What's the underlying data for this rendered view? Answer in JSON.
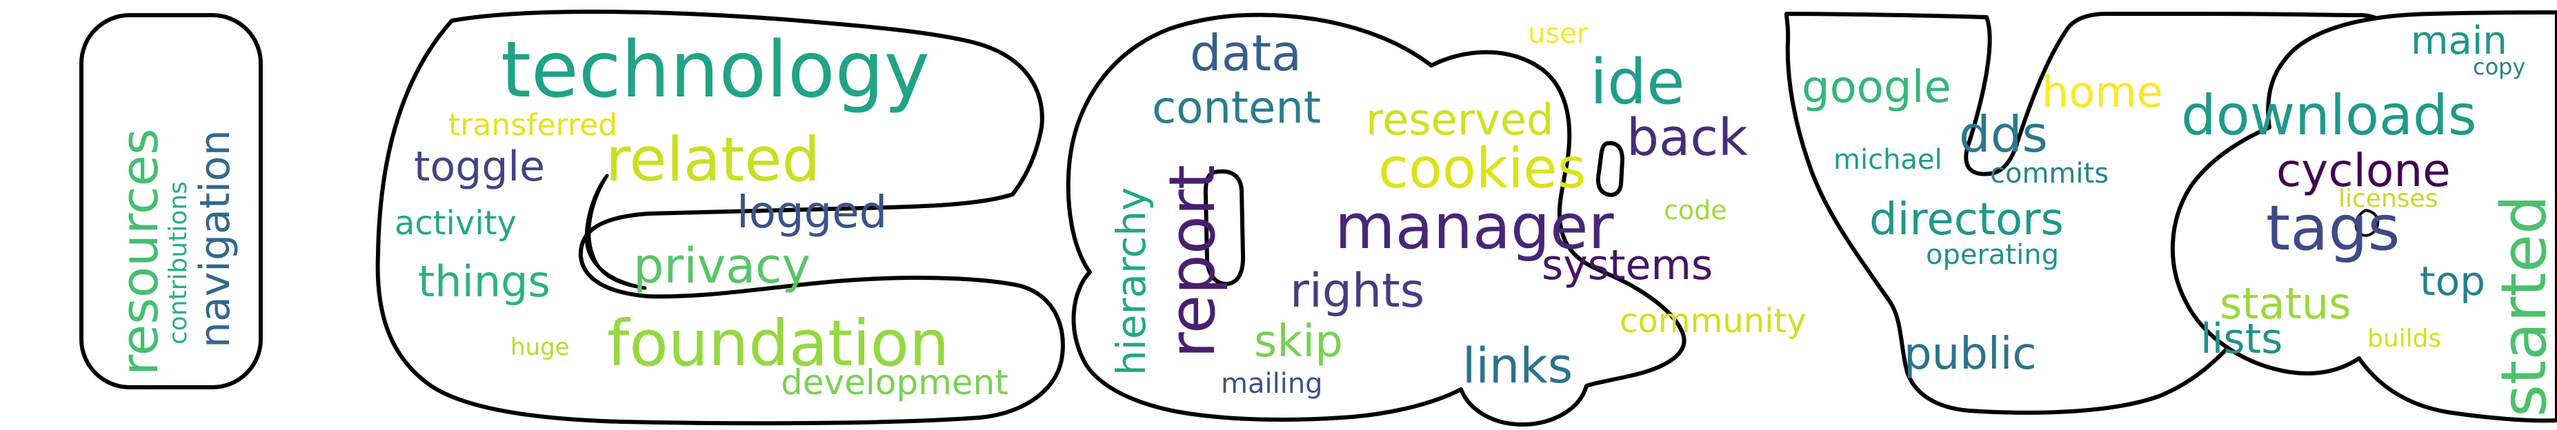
{
  "image": {
    "kind": "word-cloud"
  },
  "shape": {
    "outline_color": "#000000",
    "fill_color": "#ffffff"
  },
  "words": [
    {
      "text": "technology",
      "color": "#20a386"
    },
    {
      "text": "foundation",
      "color": "#95d840"
    },
    {
      "text": "related",
      "color": "#c8e020"
    },
    {
      "text": "privacy",
      "color": "#56c667"
    },
    {
      "text": "logged",
      "color": "#3b528b"
    },
    {
      "text": "toggle",
      "color": "#414487"
    },
    {
      "text": "things",
      "color": "#2db27d"
    },
    {
      "text": "activity",
      "color": "#22a884"
    },
    {
      "text": "transferred",
      "color": "#e5e419"
    },
    {
      "text": "huge",
      "color": "#b5de2b"
    },
    {
      "text": "development",
      "color": "#7ad151"
    },
    {
      "text": "resources",
      "color": "#44bf70"
    },
    {
      "text": "contributions",
      "color": "#29af7f"
    },
    {
      "text": "navigation",
      "color": "#31688e"
    },
    {
      "text": "data",
      "color": "#355f8d"
    },
    {
      "text": "content",
      "color": "#287d8e"
    },
    {
      "text": "hierarchy",
      "color": "#22a884"
    },
    {
      "text": "report",
      "color": "#481f70"
    },
    {
      "text": "manager",
      "color": "#482677"
    },
    {
      "text": "rights",
      "color": "#433e85"
    },
    {
      "text": "skip",
      "color": "#7ad151"
    },
    {
      "text": "mailing",
      "color": "#3b528b"
    },
    {
      "text": "links",
      "color": "#2c728e"
    },
    {
      "text": "ide",
      "color": "#1f9e89"
    },
    {
      "text": "reserved",
      "color": "#d0e11c"
    },
    {
      "text": "cookies",
      "color": "#dde318"
    },
    {
      "text": "back",
      "color": "#472d7b"
    },
    {
      "text": "systems",
      "color": "#471365"
    },
    {
      "text": "user",
      "color": "#fde725"
    },
    {
      "text": "code",
      "color": "#a0da39"
    },
    {
      "text": "community",
      "color": "#d0e11c"
    },
    {
      "text": "google",
      "color": "#35b779"
    },
    {
      "text": "home",
      "color": "#fde725"
    },
    {
      "text": "michael",
      "color": "#1e9b8a"
    },
    {
      "text": "dds",
      "color": "#2a788e"
    },
    {
      "text": "commits",
      "color": "#25858e"
    },
    {
      "text": "directors",
      "color": "#1f988b"
    },
    {
      "text": "operating",
      "color": "#21918c"
    },
    {
      "text": "public",
      "color": "#2c728e"
    },
    {
      "text": "downloads",
      "color": "#1f9a8a"
    },
    {
      "text": "main",
      "color": "#1f968b"
    },
    {
      "text": "copy",
      "color": "#26828e"
    },
    {
      "text": "cyclone",
      "color": "#440154"
    },
    {
      "text": "tags",
      "color": "#3e4a89"
    },
    {
      "text": "licenses",
      "color": "#c0df25"
    },
    {
      "text": "started",
      "color": "#4ac16d"
    },
    {
      "text": "top",
      "color": "#277f8e"
    },
    {
      "text": "status",
      "color": "#9bd93c"
    },
    {
      "text": "lists",
      "color": "#21908d"
    },
    {
      "text": "builds",
      "color": "#d2e21b"
    }
  ]
}
